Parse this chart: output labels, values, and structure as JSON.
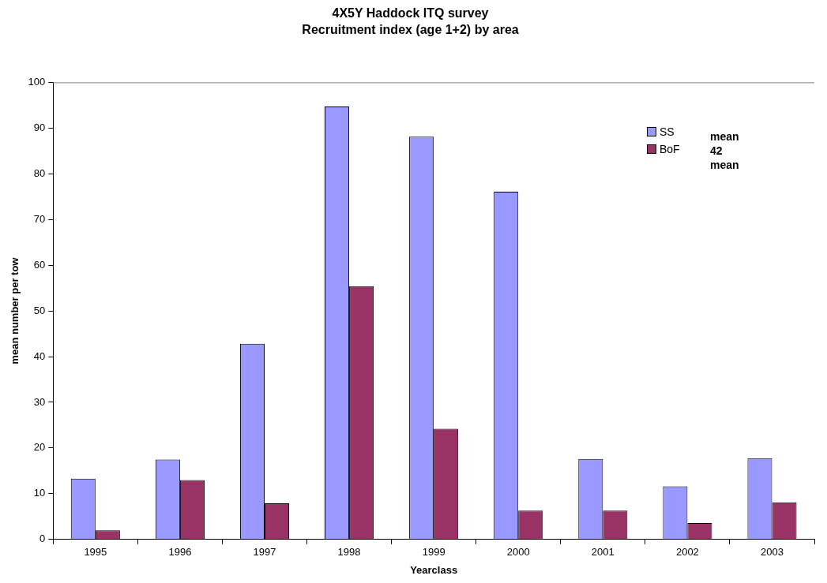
{
  "chart_data": {
    "type": "bar",
    "title": "4X5Y Haddock ITQ survey",
    "subtitle": "Recruitment index (age 1+2) by area",
    "xlabel": "Yearclass",
    "ylabel": "mean number per tow",
    "categories": [
      "1995",
      "1996",
      "1997",
      "1998",
      "1999",
      "2000",
      "2001",
      "2002",
      "2003"
    ],
    "series": [
      {
        "name": "SS",
        "color": "#9999ff",
        "values": [
          13.3,
          17.5,
          42.8,
          94.7,
          88.1,
          76.1,
          17.6,
          11.6,
          17.8
        ]
      },
      {
        "name": "BoF",
        "color": "#993366",
        "values": [
          2.0,
          13.0,
          7.9,
          55.4,
          24.2,
          6.3,
          6.3,
          3.6,
          8.1
        ]
      }
    ],
    "ylim": [
      0,
      100
    ],
    "yticks": [
      0,
      10,
      20,
      30,
      40,
      50,
      60,
      70,
      80,
      90,
      100
    ],
    "grid": false,
    "legend": "top right",
    "annotations": [
      "mean",
      "42",
      "mean"
    ]
  }
}
